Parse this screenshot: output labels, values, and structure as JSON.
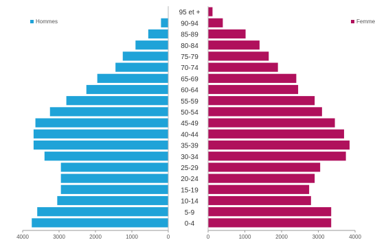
{
  "chart_data": {
    "type": "bar",
    "orientation": "horizontal",
    "categories": [
      "95 et +",
      "90-94",
      "85-89",
      "80-84",
      "75-79",
      "70-74",
      "65-69",
      "60-64",
      "55-59",
      "50-54",
      "45-49",
      "40-44",
      "35-39",
      "30-34",
      "25-29",
      "20-24",
      "15-19",
      "10-14",
      "5-9",
      "0-4"
    ],
    "series": [
      {
        "name": "Hommes",
        "side": "left",
        "color": "#1fa3d8",
        "values": [
          10,
          200,
          550,
          900,
          1250,
          1450,
          1950,
          2250,
          2800,
          3250,
          3650,
          3700,
          3700,
          3400,
          2950,
          2950,
          2950,
          3050,
          3600,
          3750
        ]
      },
      {
        "name": "Femmes",
        "side": "right",
        "color": "#b0105c",
        "values": [
          120,
          400,
          1020,
          1400,
          1650,
          1900,
          2400,
          2450,
          2900,
          3100,
          3450,
          3700,
          3850,
          3750,
          3050,
          2900,
          2750,
          2800,
          3350,
          3350
        ]
      }
    ],
    "left_axis_ticks": [
      "4000",
      "3000",
      "2000",
      "1000",
      "0"
    ],
    "right_axis_ticks": [
      "0",
      "1000",
      "2000",
      "3000",
      "4000"
    ],
    "xlim": [
      0,
      4000
    ],
    "legend": [
      "Hommes",
      "Femmes"
    ],
    "legend_placement": "top",
    "grid": false
  }
}
